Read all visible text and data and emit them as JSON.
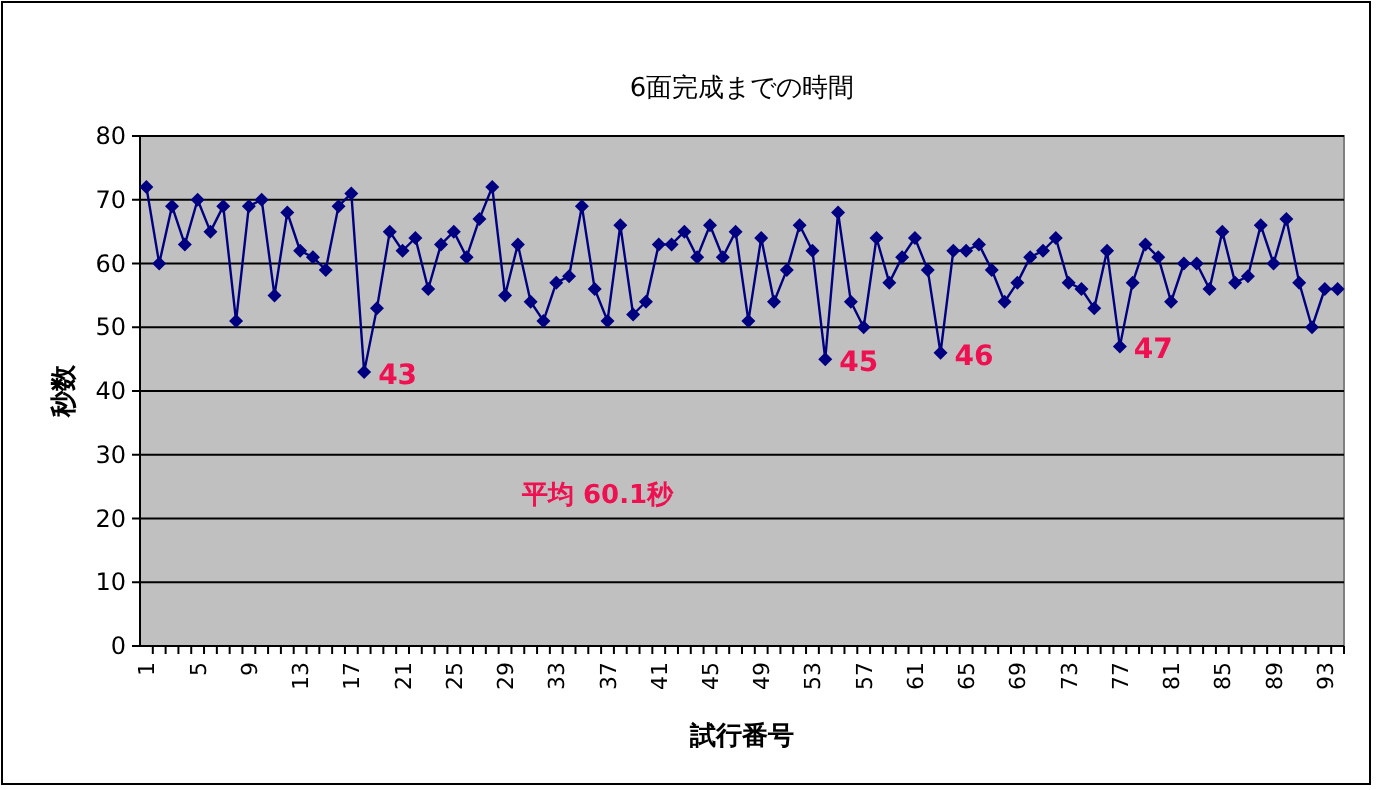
{
  "chart_data": {
    "type": "line",
    "title": "6面完成までの時間",
    "xlabel": "試行番号",
    "ylabel": "秒数",
    "categories": [
      "1",
      null,
      null,
      null,
      "5",
      null,
      null,
      null,
      "9",
      null,
      null,
      null,
      "13",
      null,
      null,
      null,
      "17",
      null,
      null,
      null,
      "21",
      null,
      null,
      null,
      "25",
      null,
      null,
      null,
      "29",
      null,
      null,
      null,
      "33",
      null,
      null,
      null,
      "37",
      null,
      null,
      null,
      "41",
      null,
      null,
      null,
      "45",
      null,
      null,
      null,
      "49",
      null,
      null,
      null,
      "53",
      null,
      null,
      null,
      "57",
      null,
      null,
      null,
      "61",
      null,
      null,
      null,
      "65",
      null,
      null,
      null,
      "69",
      null,
      null,
      null,
      "73",
      null,
      null,
      null,
      "77",
      null,
      null,
      null,
      "81",
      null,
      null,
      null,
      "85",
      null,
      null,
      null,
      "89",
      null,
      null,
      null,
      "93",
      null
    ],
    "series": [
      {
        "color": "#000080",
        "values": [
          72,
          60,
          69,
          63,
          70,
          65,
          69,
          51,
          69,
          70,
          55,
          68,
          62,
          61,
          59,
          69,
          71,
          43,
          53,
          65,
          62,
          64,
          56,
          63,
          65,
          61,
          67,
          72,
          55,
          63,
          54,
          51,
          57,
          58,
          69,
          56,
          51,
          66,
          52,
          54,
          63,
          63,
          65,
          61,
          66,
          61,
          65,
          51,
          64,
          54,
          59,
          66,
          62,
          45,
          68,
          54,
          50,
          64,
          57,
          61,
          64,
          59,
          46,
          62,
          62,
          63,
          59,
          54,
          57,
          61,
          62,
          64,
          57,
          56,
          53,
          62,
          47,
          57,
          63,
          61,
          54,
          60,
          60,
          56,
          65,
          57,
          58,
          66,
          60,
          67,
          57,
          50,
          56,
          56
        ]
      }
    ],
    "ylim": [
      0,
      80
    ],
    "yticks": [
      0,
      10,
      20,
      30,
      40,
      50,
      60,
      70,
      80
    ],
    "grid": "y",
    "marker": "diamond",
    "line_style": "solid",
    "annotations": [
      "43",
      "45",
      "46",
      "47",
      "平均 60.1秒"
    ]
  }
}
